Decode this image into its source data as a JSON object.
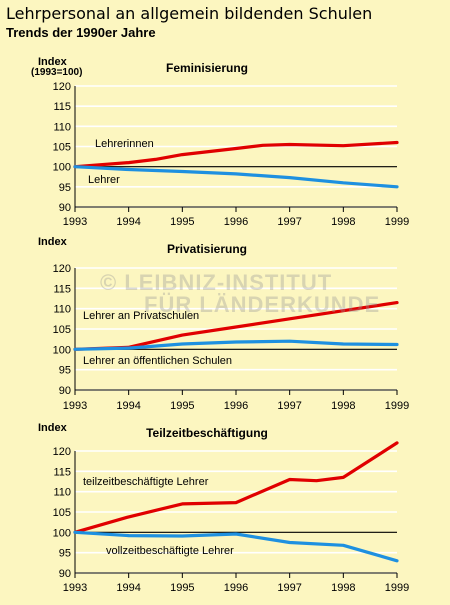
{
  "header": {
    "title": "Lehrpersonal an allgemein bildenden Schulen",
    "subtitle": "Trends der 1990er Jahre"
  },
  "watermark": {
    "line1": "© LEIBNIZ-INSTITUT",
    "line2": "FÜR LÄNDERKUNDE"
  },
  "colors": {
    "red": "#e00000",
    "blue": "#1e90e0",
    "background": "#fcf6c0"
  },
  "chart_data": [
    {
      "type": "line",
      "title": "Feminisierung",
      "ylabel": "Index",
      "ylabel2": "(1993=100)",
      "xlabel": "",
      "xlim": [
        1993,
        1999
      ],
      "ylim": [
        90,
        120
      ],
      "x_ticks": [
        "1993",
        "1994",
        "1995",
        "1996",
        "1997",
        "1998",
        "1999"
      ],
      "y_ticks": [
        "90",
        "95",
        "100",
        "105",
        "110",
        "115",
        "120"
      ],
      "grid": true,
      "series": [
        {
          "name": "Lehrerinnen",
          "color": "#e00000",
          "x": [
            1993,
            1994,
            1994.5,
            1995,
            1996,
            1996.5,
            1997,
            1998,
            1999
          ],
          "values": [
            100,
            101,
            101.8,
            103,
            104.5,
            105.3,
            105.5,
            105.2,
            106
          ]
        },
        {
          "name": "Lehrer",
          "color": "#1e90e0",
          "x": [
            1993,
            1994,
            1995,
            1996,
            1997,
            1998,
            1999
          ],
          "values": [
            100,
            99.3,
            98.8,
            98.2,
            97.3,
            96,
            95
          ]
        }
      ]
    },
    {
      "type": "line",
      "title": "Privatisierung",
      "ylabel": "Index",
      "ylabel2": "",
      "xlabel": "",
      "xlim": [
        1993,
        1999
      ],
      "ylim": [
        90,
        120
      ],
      "x_ticks": [
        "1993",
        "1994",
        "1995",
        "1996",
        "1997",
        "1998",
        "1999"
      ],
      "y_ticks": [
        "90",
        "95",
        "100",
        "105",
        "110",
        "115",
        "120"
      ],
      "grid": true,
      "series": [
        {
          "name": "Lehrer an Privatschulen",
          "color": "#e00000",
          "x": [
            1993,
            1994,
            1995,
            1996,
            1997,
            1998,
            1999
          ],
          "values": [
            100,
            100.5,
            103.5,
            105.5,
            107.5,
            109.5,
            111.5
          ]
        },
        {
          "name": "Lehrer an öffentlichen Schulen",
          "color": "#1e90e0",
          "x": [
            1993,
            1994,
            1995,
            1996,
            1997,
            1998,
            1999
          ],
          "values": [
            100,
            100.3,
            101.3,
            101.8,
            102,
            101.3,
            101.2
          ]
        }
      ]
    },
    {
      "type": "line",
      "title": "Teilzeitbeschäftigung",
      "ylabel": "Index",
      "ylabel2": "",
      "xlabel": "",
      "xlim": [
        1993,
        1999
      ],
      "ylim": [
        90,
        120
      ],
      "x_ticks": [
        "1993",
        "1994",
        "1995",
        "1996",
        "1997",
        "1998",
        "1999"
      ],
      "y_ticks": [
        "90",
        "95",
        "100",
        "105",
        "110",
        "115",
        "120"
      ],
      "grid": true,
      "series": [
        {
          "name": "teilzeitbeschäftigte Lehrer",
          "color": "#e00000",
          "x": [
            1993,
            1994,
            1995,
            1996,
            1997,
            1997.5,
            1998,
            1999
          ],
          "values": [
            100,
            103.8,
            107,
            107.3,
            113,
            112.7,
            113.5,
            122
          ]
        },
        {
          "name": "vollzeitbeschäftigte Lehrer",
          "color": "#1e90e0",
          "x": [
            1993,
            1994,
            1995,
            1996,
            1997,
            1998,
            1999
          ],
          "values": [
            100,
            99.2,
            99.1,
            99.6,
            97.5,
            96.8,
            93
          ]
        }
      ]
    }
  ]
}
